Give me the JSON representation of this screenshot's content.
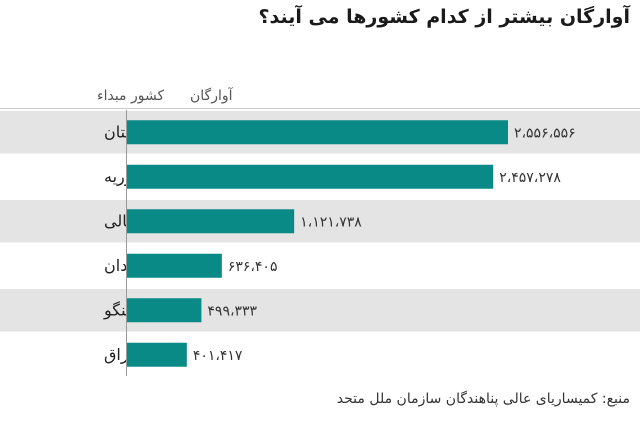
{
  "title": "آوارگان بیشتر از کدام کشورها می آیند؟",
  "source": "منبع: کمیساریای عالی پناهندگان سازمان ملل متحد",
  "colors": {
    "bar": "#0a8a86",
    "row_shade": "#e4e4e4",
    "axis": "#9a9a9a"
  },
  "chart_data": {
    "type": "bar",
    "orientation": "horizontal",
    "category_header": "کشور مبداء",
    "value_header": "آوارگان",
    "categories": [
      "افغانستان",
      "سوریه",
      "سومالی",
      "سودان",
      "ج. خ. کنگو",
      "عراق"
    ],
    "values": [
      2556556,
      2457278,
      1121738,
      636405,
      499333,
      401417
    ],
    "value_labels": [
      "۲،۵۵۶،۵۵۶",
      "۲،۴۵۷،۲۷۸",
      "۱،۱۲۱،۷۳۸",
      "۶۳۶،۴۰۵",
      "۴۹۹،۳۳۳",
      "۴۰۱،۴۱۷"
    ],
    "xlim": [
      0,
      2556556
    ],
    "row_shading": "alternating"
  }
}
